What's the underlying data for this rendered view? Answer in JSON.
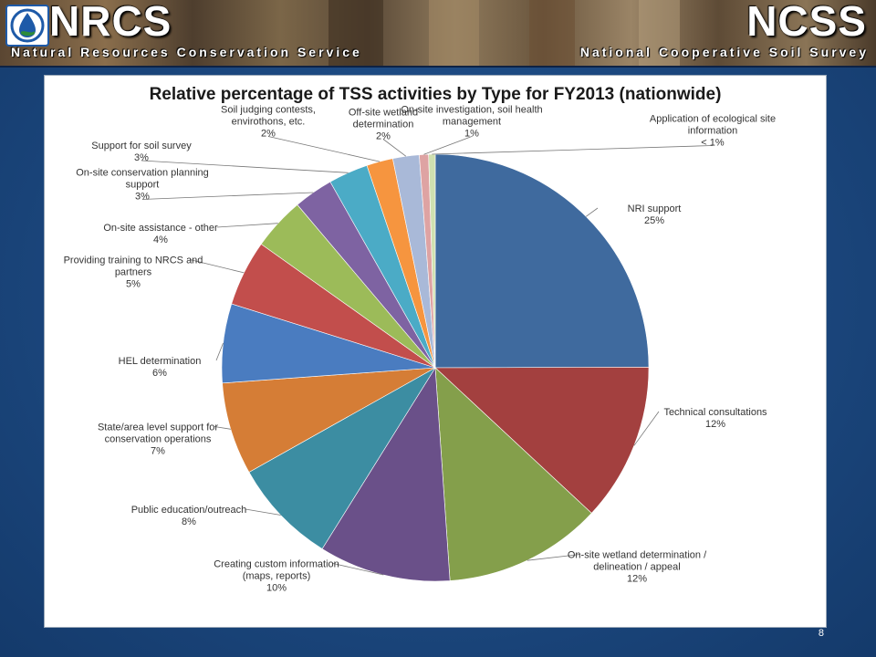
{
  "header": {
    "left_title": "NRCS",
    "left_subtitle": "Natural Resources Conservation Service",
    "right_title": "NCSS",
    "right_subtitle": "National Cooperative Soil Survey",
    "logo_icon": "water-drop-icon"
  },
  "slide_number": "8",
  "colors": {
    "background": "#1d4a82",
    "panel": "#ffffff"
  },
  "chart_data": {
    "type": "pie",
    "title": "Relative percentage of TSS activities by Type for FY2013 (nationwide)",
    "start_angle_deg": 0,
    "direction": "clockwise",
    "legend": "none (leader-line data labels)",
    "slices": [
      {
        "name": "NRI support",
        "value": 25,
        "label_lines": [
          "NRI support",
          "25%"
        ],
        "color": "#3f6a9e"
      },
      {
        "name": "Technical consultations",
        "value": 12,
        "label_lines": [
          "Technical consultations",
          "12%"
        ],
        "color": "#a3403f"
      },
      {
        "name": "On-site wetland determination / delineation / appeal",
        "value": 12,
        "label_lines": [
          "On-site wetland determination /",
          "delineation / appeal",
          "12%"
        ],
        "color": "#849f4b"
      },
      {
        "name": "Creating custom information (maps, reports)",
        "value": 10,
        "label_lines": [
          "Creating custom information",
          "(maps, reports)",
          "10%"
        ],
        "color": "#6a5089"
      },
      {
        "name": "Public education/outreach",
        "value": 8,
        "label_lines": [
          "Public education/outreach",
          "8%"
        ],
        "color": "#3c8da2"
      },
      {
        "name": "State/area level support for conservation operations",
        "value": 7,
        "label_lines": [
          "State/area level support for",
          "conservation operations",
          "7%"
        ],
        "color": "#d57d36"
      },
      {
        "name": "HEL determination",
        "value": 6,
        "label_lines": [
          "HEL determination",
          "6%"
        ],
        "color": "#4a7cc0"
      },
      {
        "name": "Providing training to NRCS and partners",
        "value": 5,
        "label_lines": [
          "Providing training to NRCS and",
          "partners",
          "5%"
        ],
        "color": "#c24e4c"
      },
      {
        "name": "On-site assistance - other",
        "value": 4,
        "label_lines": [
          "On-site assistance - other",
          "4%"
        ],
        "color": "#9cbb59"
      },
      {
        "name": "On-site conservation planning support",
        "value": 3,
        "label_lines": [
          "On-site conservation planning",
          "support",
          "3%"
        ],
        "color": "#7e63a2"
      },
      {
        "name": "Support for soil survey",
        "value": 3,
        "label_lines": [
          "Support for soil survey",
          "3%"
        ],
        "color": "#4babc6"
      },
      {
        "name": "Soil judging contests, envirothons, etc.",
        "value": 2,
        "label_lines": [
          "Soil judging contests,",
          "envirothons, etc.",
          "2%"
        ],
        "color": "#f6953f"
      },
      {
        "name": "Off-site wetland determination",
        "value": 2,
        "label_lines": [
          "Off-site wetland",
          "determination",
          "2%"
        ],
        "color": "#a9b9d8"
      },
      {
        "name": "On-site investigation, soil health management",
        "value": 0.7,
        "label_lines": [
          "On-site investigation, soil health",
          "management",
          "1%"
        ],
        "color": "#dea3a3"
      },
      {
        "name": "Application of ecological site information",
        "value": 0.5,
        "label_lines": [
          "Application of ecological site",
          "information",
          "< 1%"
        ],
        "color": "#cfe0b0"
      }
    ]
  }
}
